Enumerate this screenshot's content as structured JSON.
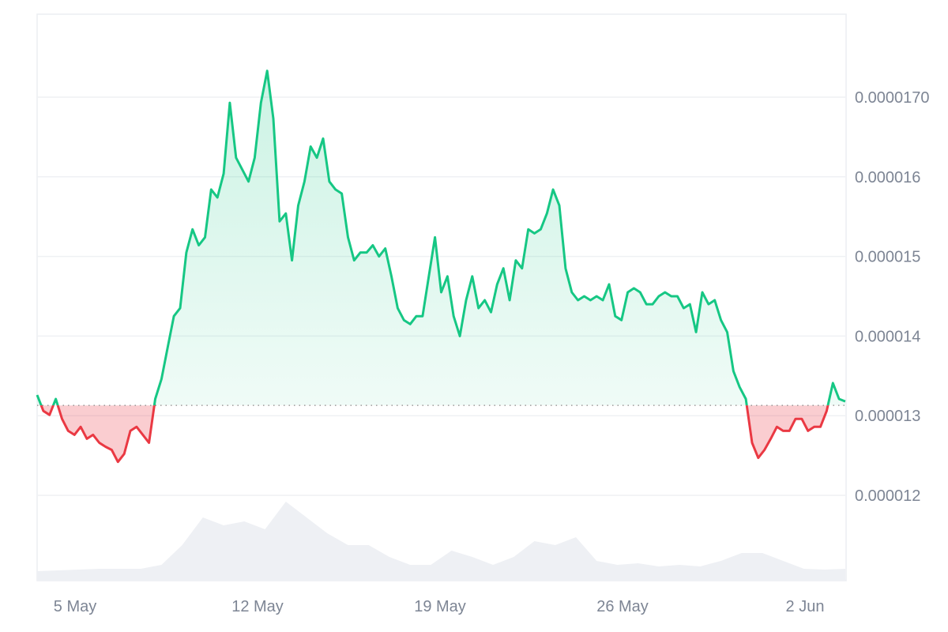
{
  "chart_data": {
    "type": "line",
    "title": "",
    "xlabel": "",
    "ylabel": "",
    "x_range": [
      "3 May 12:00",
      "3 Jun 14:00"
    ],
    "x_ticks": [
      {
        "label": "5 May",
        "day": 0
      },
      {
        "label": "12 May",
        "day": 7
      },
      {
        "label": "19 May",
        "day": 14
      },
      {
        "label": "26 May",
        "day": 21
      },
      {
        "label": "2 Jun",
        "day": 28
      }
    ],
    "y_ticks": [
      {
        "label": "0.0000170",
        "value": 1.7e-05
      },
      {
        "label": "0.000016",
        "value": 1.6e-05
      },
      {
        "label": "0.000015",
        "value": 1.5e-05
      },
      {
        "label": "0.000014",
        "value": 1.4e-05
      },
      {
        "label": "0.000013",
        "value": 1.3e-05
      },
      {
        "label": "0.000012",
        "value": 1.2e-05
      }
    ],
    "ylim": [
      1.1e-05,
      1.8e-05
    ],
    "grid": true,
    "baseline": 1.313e-05,
    "colors": {
      "up": "#16c784",
      "down": "#ea3943",
      "volume": "#eef0f4",
      "grid": "#eff1f4"
    },
    "price_values": [
      13.26,
      13.06,
      13.01,
      13.21,
      12.96,
      12.81,
      12.76,
      12.86,
      12.71,
      12.76,
      12.66,
      12.61,
      12.57,
      12.42,
      12.52,
      12.81,
      12.86,
      12.76,
      12.66,
      13.21,
      13.46,
      13.86,
      14.25,
      14.35,
      15.05,
      15.34,
      15.14,
      15.24,
      15.84,
      15.74,
      16.04,
      16.93,
      16.24,
      16.09,
      15.94,
      16.24,
      16.93,
      17.33,
      16.73,
      15.44,
      15.54,
      14.95,
      15.64,
      15.94,
      16.38,
      16.24,
      16.48,
      15.94,
      15.84,
      15.79,
      15.24,
      14.95,
      15.05,
      15.05,
      15.14,
      15.0,
      15.1,
      14.75,
      14.35,
      14.2,
      14.15,
      14.25,
      14.25,
      14.75,
      15.24,
      14.55,
      14.75,
      14.25,
      14.0,
      14.45,
      14.75,
      14.35,
      14.45,
      14.3,
      14.65,
      14.85,
      14.45,
      14.95,
      14.85,
      15.34,
      15.29,
      15.34,
      15.54,
      15.84,
      15.64,
      14.85,
      14.55,
      14.45,
      14.5,
      14.45,
      14.5,
      14.45,
      14.65,
      14.25,
      14.2,
      14.55,
      14.6,
      14.55,
      14.4,
      14.4,
      14.5,
      14.55,
      14.5,
      14.5,
      14.35,
      14.4,
      14.05,
      14.55,
      14.4,
      14.45,
      14.2,
      14.05,
      13.56,
      13.36,
      13.21,
      12.66,
      12.47,
      12.57,
      12.71,
      12.86,
      12.81,
      12.81,
      12.96,
      12.96,
      12.81,
      12.86,
      12.86,
      13.06,
      13.41,
      13.21,
      13.18
    ],
    "price_unit_multiplier": 1e-06,
    "volume_relative": [
      0.12,
      0.13,
      0.14,
      0.15,
      0.15,
      0.15,
      0.2,
      0.45,
      0.8,
      0.7,
      0.75,
      0.65,
      1.0,
      0.8,
      0.6,
      0.45,
      0.45,
      0.3,
      0.2,
      0.2,
      0.38,
      0.3,
      0.2,
      0.3,
      0.5,
      0.45,
      0.55,
      0.25,
      0.2,
      0.22,
      0.18,
      0.2,
      0.18,
      0.25,
      0.35,
      0.35,
      0.25,
      0.15,
      0.14,
      0.15
    ]
  }
}
